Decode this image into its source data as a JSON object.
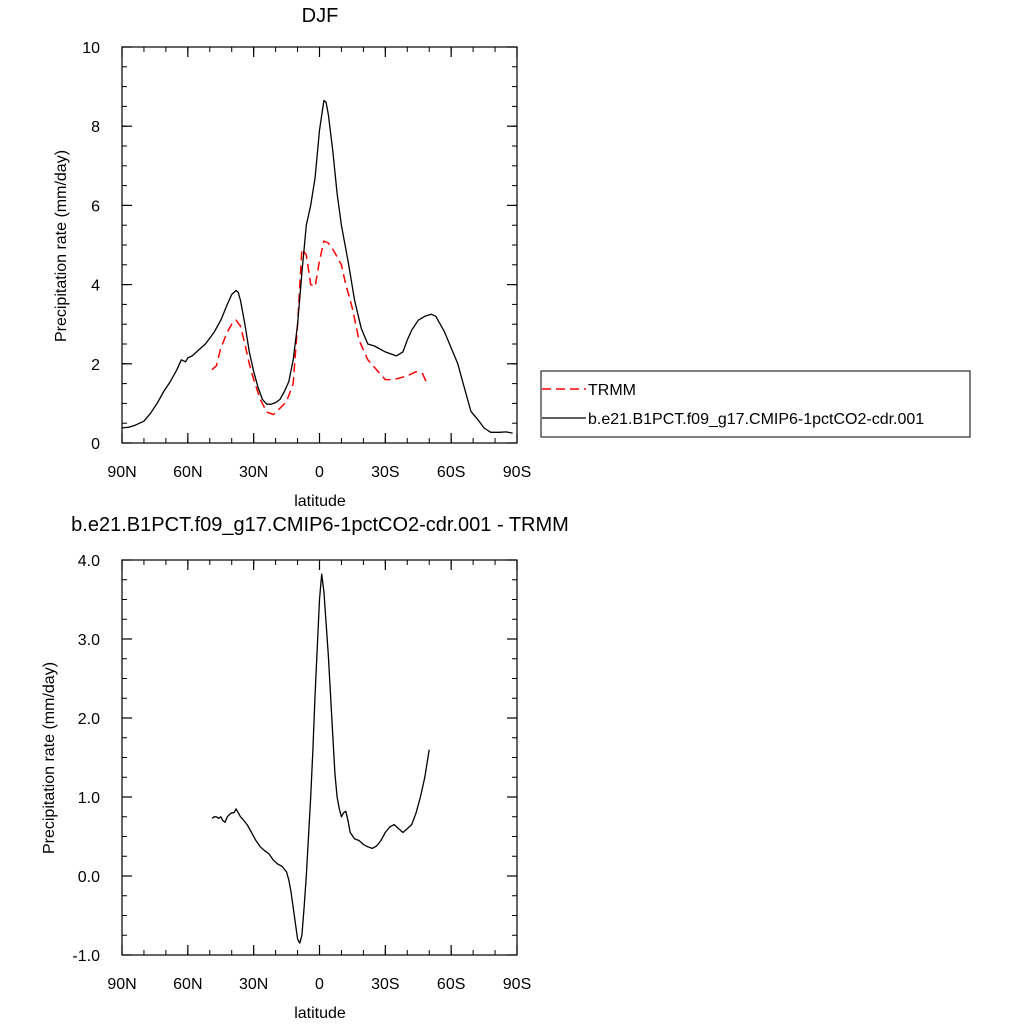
{
  "chart_data": [
    {
      "type": "line",
      "title": "DJF",
      "xlabel": "latitude",
      "ylabel": "Precipitation rate (mm/day)",
      "xlim": [
        90,
        -90
      ],
      "ylim": [
        0,
        10
      ],
      "x_ticks": [
        90,
        60,
        30,
        0,
        -30,
        -60,
        -90
      ],
      "x_tick_labels": [
        "90N",
        "60N",
        "30N",
        "0",
        "30S",
        "60S",
        "90S"
      ],
      "y_ticks": [
        0,
        2,
        4,
        6,
        8,
        10
      ],
      "y_tick_labels": [
        "0",
        "2",
        "4",
        "6",
        "8",
        "10"
      ],
      "legend": {
        "position": "right"
      },
      "series": [
        {
          "name": "TRMM",
          "color": "#ff0000",
          "style": "dashed",
          "x": [
            49,
            47,
            45,
            42,
            40,
            38,
            36,
            34,
            32,
            30,
            27,
            24,
            21,
            18,
            15,
            12,
            10,
            8,
            6,
            4,
            2,
            0,
            -2,
            -4,
            -6,
            -8,
            -10,
            -12,
            -15,
            -18,
            -22,
            -26,
            -30,
            -34,
            -37,
            -40,
            -44,
            -47,
            -49
          ],
          "y": [
            1.85,
            1.95,
            2.4,
            2.8,
            3.0,
            3.1,
            2.95,
            2.5,
            2.0,
            1.6,
            1.1,
            0.78,
            0.72,
            0.88,
            1.05,
            1.5,
            3.0,
            4.9,
            4.75,
            4.0,
            3.95,
            4.6,
            5.1,
            5.05,
            4.9,
            4.7,
            4.5,
            4.0,
            3.4,
            2.6,
            2.1,
            1.85,
            1.6,
            1.6,
            1.65,
            1.7,
            1.8,
            1.75,
            1.5
          ]
        },
        {
          "name": "b.e21.B1PCT.f09_g17.CMIP6-1pctCO2-cdr.001",
          "color": "#000000",
          "style": "solid",
          "x": [
            90,
            87,
            84,
            80,
            77,
            74,
            71,
            68,
            65,
            63,
            61,
            60,
            58,
            55,
            52,
            48,
            45,
            42,
            40,
            38,
            37,
            36,
            34,
            32,
            30,
            28,
            26,
            24,
            22,
            20,
            18,
            16,
            14,
            12,
            10,
            8,
            6,
            4,
            2,
            0,
            -2,
            -3,
            -4,
            -6,
            -8,
            -10,
            -13,
            -16,
            -19,
            -22,
            -25,
            -30,
            -35,
            -38,
            -40,
            -42,
            -45,
            -48,
            -51,
            -53,
            -55,
            -57,
            -60,
            -63,
            -66,
            -69,
            -72,
            -75,
            -78,
            -82,
            -85,
            -88
          ],
          "y": [
            0.38,
            0.4,
            0.45,
            0.55,
            0.75,
            1.0,
            1.3,
            1.55,
            1.85,
            2.1,
            2.05,
            2.15,
            2.2,
            2.35,
            2.5,
            2.8,
            3.1,
            3.5,
            3.75,
            3.85,
            3.8,
            3.6,
            3.0,
            2.3,
            1.8,
            1.4,
            1.1,
            0.98,
            0.98,
            1.02,
            1.1,
            1.3,
            1.55,
            2.1,
            3.0,
            4.3,
            5.5,
            6.0,
            6.7,
            7.9,
            8.65,
            8.6,
            8.3,
            7.4,
            6.3,
            5.5,
            4.6,
            3.6,
            2.9,
            2.5,
            2.45,
            2.3,
            2.2,
            2.3,
            2.6,
            2.85,
            3.1,
            3.2,
            3.25,
            3.2,
            3.0,
            2.8,
            2.4,
            2.0,
            1.4,
            0.8,
            0.6,
            0.38,
            0.27,
            0.27,
            0.28,
            0.25
          ]
        }
      ]
    },
    {
      "type": "line",
      "title": "b.e21.B1PCT.f09_g17.CMIP6-1pctCO2-cdr.001 - TRMM",
      "xlabel": "latitude",
      "ylabel": "Precipitation rate (mm/day)",
      "xlim": [
        90,
        -90
      ],
      "ylim": [
        -1.0,
        4.0
      ],
      "x_ticks": [
        90,
        60,
        30,
        0,
        -30,
        -60,
        -90
      ],
      "x_tick_labels": [
        "90N",
        "60N",
        "30N",
        "0",
        "30S",
        "60S",
        "90S"
      ],
      "y_ticks": [
        -1,
        0,
        1,
        2,
        3,
        4
      ],
      "y_tick_labels": [
        "-1.0",
        "0.0",
        "1.0",
        "2.0",
        "3.0",
        "4.0"
      ],
      "series": [
        {
          "color": "#000000",
          "style": "solid",
          "x": [
            49,
            48,
            47,
            46,
            45,
            44,
            43,
            42,
            41,
            40,
            39,
            38,
            37,
            36,
            35,
            33,
            31,
            29,
            27,
            25,
            23,
            21,
            19,
            17,
            15,
            14,
            13,
            12,
            11,
            10,
            9,
            8,
            7,
            6,
            5,
            4,
            3,
            2,
            1,
            0,
            -1,
            -2,
            -3,
            -4,
            -5,
            -6,
            -7,
            -8,
            -9,
            -10,
            -11,
            -12,
            -13,
            -14,
            -16,
            -18,
            -20,
            -22,
            -24,
            -26,
            -28,
            -30,
            -32,
            -34,
            -36,
            -38,
            -40,
            -42,
            -44,
            -46,
            -48,
            -50
          ],
          "y": [
            0.73,
            0.75,
            0.75,
            0.73,
            0.75,
            0.7,
            0.68,
            0.75,
            0.78,
            0.8,
            0.8,
            0.85,
            0.8,
            0.75,
            0.72,
            0.65,
            0.55,
            0.45,
            0.37,
            0.32,
            0.28,
            0.2,
            0.15,
            0.12,
            0.05,
            -0.05,
            -0.2,
            -0.4,
            -0.6,
            -0.8,
            -0.85,
            -0.75,
            -0.4,
            0.0,
            0.5,
            1.0,
            1.6,
            2.3,
            2.9,
            3.5,
            3.82,
            3.6,
            3.2,
            2.8,
            2.3,
            1.8,
            1.3,
            1.0,
            0.85,
            0.75,
            0.8,
            0.82,
            0.7,
            0.55,
            0.47,
            0.45,
            0.4,
            0.37,
            0.35,
            0.38,
            0.45,
            0.55,
            0.62,
            0.65,
            0.6,
            0.55,
            0.6,
            0.65,
            0.8,
            1.0,
            1.25,
            1.6
          ]
        }
      ]
    }
  ]
}
